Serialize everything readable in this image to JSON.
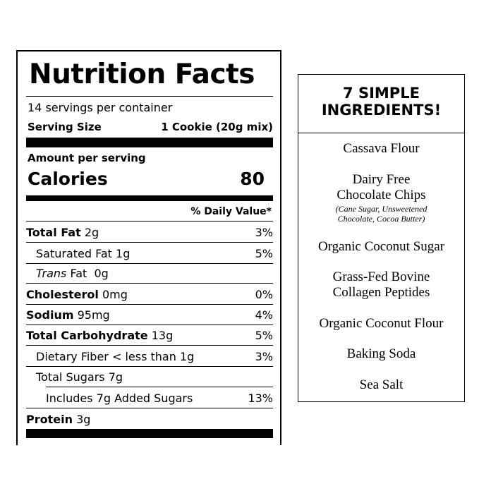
{
  "nutrition": {
    "title": "Nutrition Facts",
    "servings": "14 servings per container",
    "serving_size_label": "Serving Size",
    "serving_size_value": "1 Cookie (20g mix)",
    "amount_per_serving": "Amount per serving",
    "calories_label": "Calories",
    "calories_value": "80",
    "dv_header": "% Daily Value*",
    "rows": [
      {
        "label": "Total Fat",
        "amount": "2g",
        "dv": "3%"
      },
      {
        "label": "Saturated Fat",
        "amount": "1g",
        "dv": "5%"
      },
      {
        "label": "Trans",
        "amount": "Fat  0g",
        "dv": ""
      },
      {
        "label": "Cholesterol",
        "amount": "0mg",
        "dv": "0%"
      },
      {
        "label": "Sodium",
        "amount": "95mg",
        "dv": "4%"
      },
      {
        "label": "Total Carbohydrate",
        "amount": "13g",
        "dv": "5%"
      },
      {
        "label": "Dietary Fiber < less than 1g",
        "amount": "",
        "dv": "3%"
      },
      {
        "label": "Total Sugars 7g",
        "amount": "",
        "dv": ""
      },
      {
        "label": "Includes 7g Added Sugars",
        "amount": "",
        "dv": "13%"
      },
      {
        "label": "Protein",
        "amount": "3g",
        "dv": ""
      }
    ]
  },
  "ingredients": {
    "title_line1": "7 SIMPLE",
    "title_line2": "INGREDIENTS!",
    "items": [
      {
        "name": "Cassava Flour"
      },
      {
        "name_line1": "Dairy Free",
        "name_line2": "Chocolate Chips",
        "note_line1": "(Cane Sugar, Unsweetened",
        "note_line2": "Chocolate, Cocoa Butter)"
      },
      {
        "name": "Organic Coconut Sugar"
      },
      {
        "name_line1": "Grass-Fed Bovine",
        "name_line2": "Collagen Peptides"
      },
      {
        "name": "Organic Coconut Flour"
      },
      {
        "name": "Baking Soda"
      },
      {
        "name": "Sea Salt"
      }
    ]
  }
}
